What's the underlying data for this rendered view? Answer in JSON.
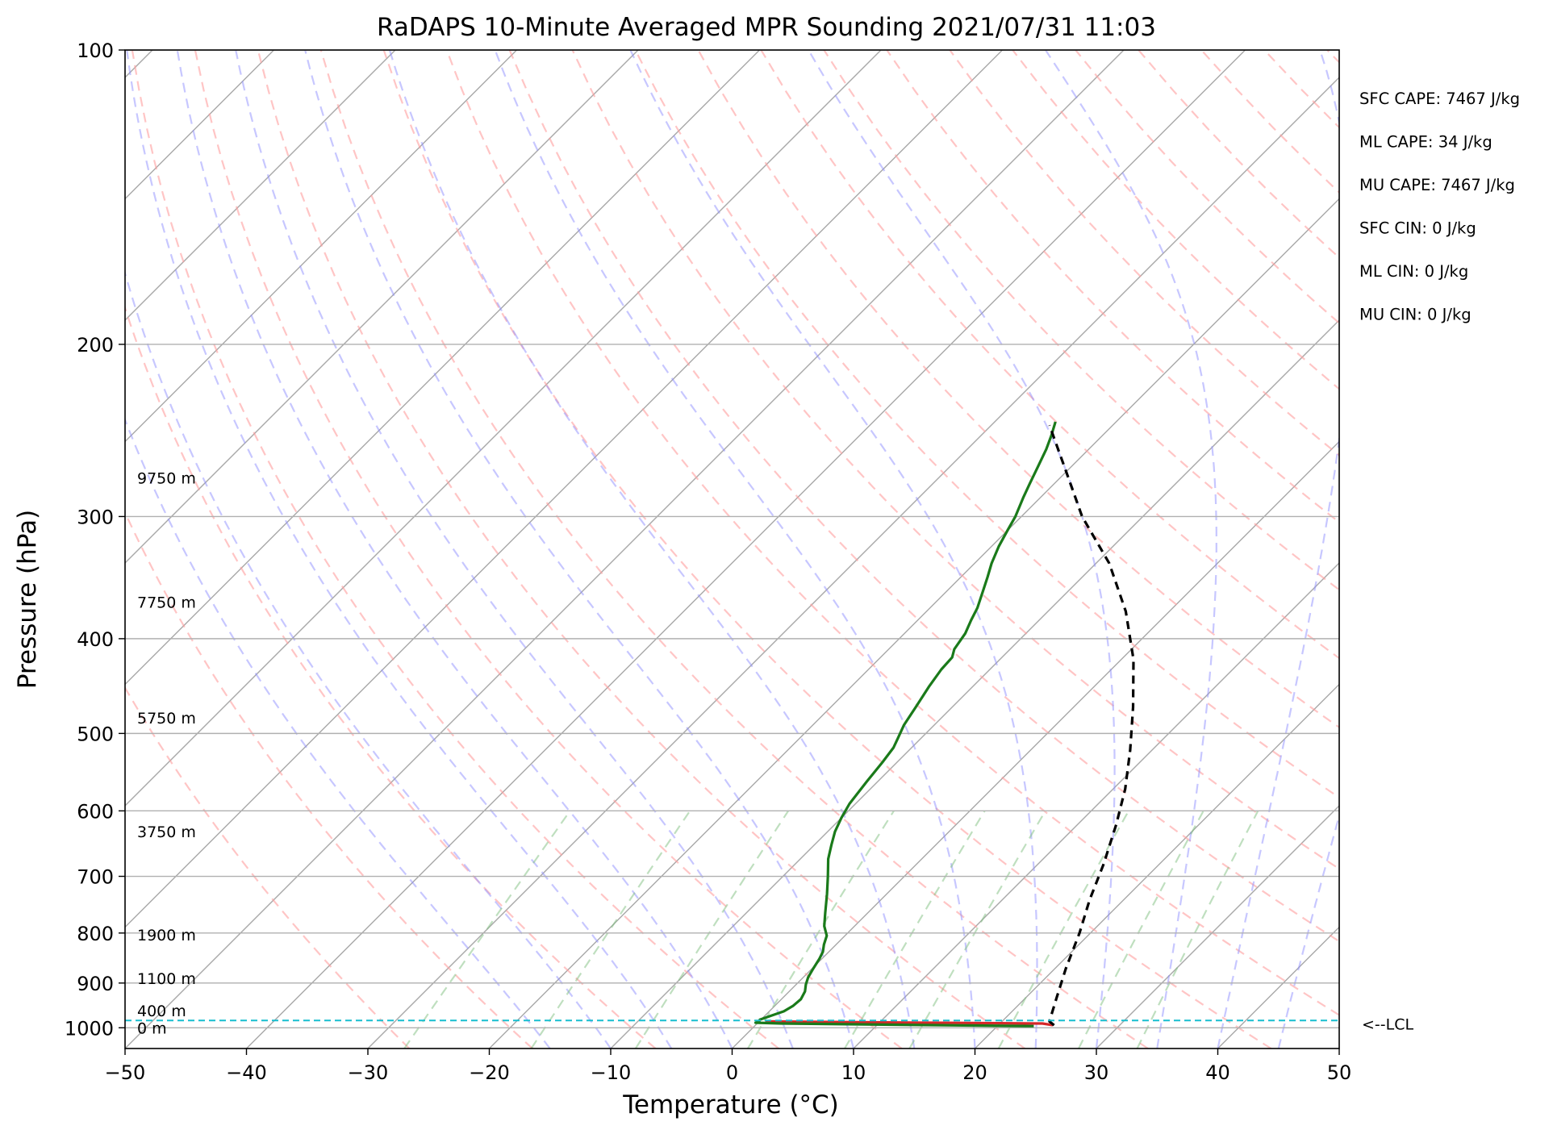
{
  "chart_data": {
    "type": "skew-t",
    "title": "RaDAPS 10-Minute Averaged MPR Sounding 2021/07/31 11:03",
    "xlabel": "Temperature (°C)",
    "ylabel": "Pressure (hPa)",
    "xlim": [
      -50,
      50
    ],
    "ylim": [
      1050,
      100
    ],
    "y_scale": "log",
    "grid": true,
    "x_ticks": [
      -50,
      -40,
      -30,
      -20,
      -10,
      0,
      10,
      20,
      30,
      40,
      50
    ],
    "x_tick_labels": [
      "−50",
      "−40",
      "−30",
      "−20",
      "−10",
      "0",
      "10",
      "20",
      "30",
      "40",
      "50"
    ],
    "y_ticks": [
      1000,
      900,
      800,
      700,
      600,
      500,
      400,
      300,
      200,
      100
    ],
    "y_tick_labels": [
      "1000",
      "900",
      "800",
      "700",
      "600",
      "500",
      "400",
      "300",
      "200",
      "100"
    ],
    "height_labels": [
      {
        "text": "0 m",
        "pressure": 1000
      },
      {
        "text": "400 m",
        "pressure": 960
      },
      {
        "text": "1100 m",
        "pressure": 890
      },
      {
        "text": "1900 m",
        "pressure": 803
      },
      {
        "text": "3750 m",
        "pressure": 630
      },
      {
        "text": "5750 m",
        "pressure": 482
      },
      {
        "text": "7750 m",
        "pressure": 367
      },
      {
        "text": "9750 m",
        "pressure": 274
      }
    ],
    "indices": [
      "SFC CAPE: 7467 J/kg",
      "ML CAPE: 34 J/kg",
      "MU CAPE: 7467 J/kg",
      "SFC CIN: 0 J/kg",
      "ML CIN: 0 J/kg",
      "MU CIN: 0 J/kg"
    ],
    "lcl_label": "<--LCL",
    "lcl_pressure": 983,
    "series": [
      {
        "color": "#d62728",
        "style": "solid",
        "points": [
          [
            24.5,
            994
          ],
          [
            23.5,
            990
          ],
          [
            14.0,
            988
          ],
          [
            4.0,
            986
          ],
          [
            0.5,
            985
          ]
        ]
      },
      {
        "color": "#1a7a1a",
        "style": "solid",
        "points": [
          [
            23.0,
            996
          ],
          [
            12.0,
            993
          ],
          [
            2.0,
            990
          ],
          [
            -0.2,
            988
          ],
          [
            0.0,
            985
          ],
          [
            -0.1,
            981
          ],
          [
            0.5,
            972
          ],
          [
            1.2,
            962
          ],
          [
            1.5,
            950
          ],
          [
            1.6,
            935
          ],
          [
            1.3,
            918
          ],
          [
            0.8,
            903
          ],
          [
            0.4,
            888
          ],
          [
            0.1,
            870
          ],
          [
            -0.2,
            850
          ],
          [
            -0.5,
            836
          ],
          [
            -1.0,
            822
          ],
          [
            -1.5,
            805
          ],
          [
            -2.5,
            787
          ],
          [
            -3.5,
            763
          ],
          [
            -4.9,
            730
          ],
          [
            -6.3,
            700
          ],
          [
            -7.7,
            672
          ],
          [
            -8.6,
            650
          ],
          [
            -9.4,
            630
          ],
          [
            -10.0,
            610
          ],
          [
            -10.5,
            590
          ],
          [
            -10.9,
            560
          ],
          [
            -11.2,
            535
          ],
          [
            -11.5,
            517
          ],
          [
            -11.9,
            506
          ],
          [
            -12.5,
            490
          ],
          [
            -13.0,
            470
          ],
          [
            -13.6,
            448
          ],
          [
            -14.0,
            430
          ],
          [
            -14.1,
            418
          ],
          [
            -14.6,
            410
          ],
          [
            -15.0,
            395
          ],
          [
            -15.6,
            383
          ],
          [
            -16.1,
            372
          ],
          [
            -17.0,
            358
          ],
          [
            -17.8,
            346
          ],
          [
            -18.6,
            335
          ],
          [
            -19.4,
            322
          ],
          [
            -20.0,
            310
          ],
          [
            -20.5,
            300
          ],
          [
            -21.4,
            287
          ],
          [
            -22.0,
            278
          ],
          [
            -22.8,
            266
          ],
          [
            -23.5,
            256
          ],
          [
            -24.2,
            248
          ],
          [
            -25.0,
            240
          ]
        ]
      },
      {
        "color": "#000000",
        "style": "dashed",
        "points": [
          [
            24.6,
            994
          ],
          [
            23.9,
            985
          ],
          [
            22.5,
            930
          ],
          [
            20.9,
            870
          ],
          [
            19.1,
            800
          ],
          [
            17.2,
            740
          ],
          [
            15.4,
            680
          ],
          [
            13.2,
            620
          ],
          [
            11.0,
            570
          ],
          [
            8.2,
            520
          ],
          [
            4.9,
            470
          ],
          [
            1.0,
            420
          ],
          [
            -3.6,
            375
          ],
          [
            -8.9,
            335
          ],
          [
            -15.0,
            300
          ],
          [
            -20.0,
            270
          ],
          [
            -25.2,
            242
          ]
        ]
      }
    ]
  }
}
